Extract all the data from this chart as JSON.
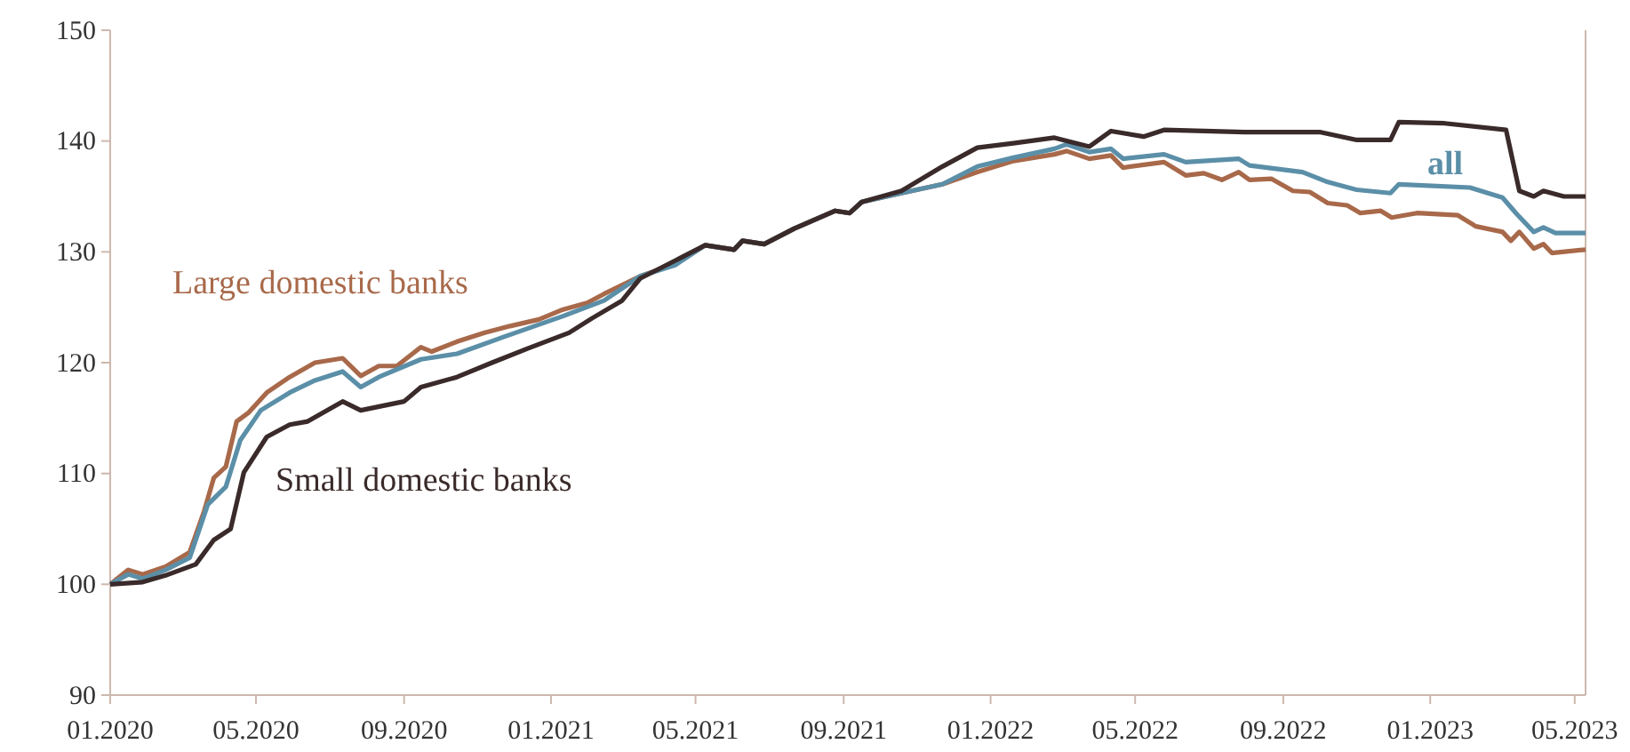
{
  "chart_data": {
    "type": "line",
    "xlim": [
      "2020-01-01",
      "2023-05-10"
    ],
    "ylim": [
      90,
      150
    ],
    "xticks": [
      {
        "value": "2020-01-01",
        "label": "01.2020"
      },
      {
        "value": "2020-05-01",
        "label": "05.2020"
      },
      {
        "value": "2020-09-01",
        "label": "09.2020"
      },
      {
        "value": "2021-01-01",
        "label": "01.2021"
      },
      {
        "value": "2021-05-01",
        "label": "05.2021"
      },
      {
        "value": "2021-09-01",
        "label": "09.2021"
      },
      {
        "value": "2022-01-01",
        "label": "01.2022"
      },
      {
        "value": "2022-05-01",
        "label": "05.2022"
      },
      {
        "value": "2022-09-01",
        "label": "09.2022"
      },
      {
        "value": "2023-01-01",
        "label": "01.2023"
      },
      {
        "value": "2023-05-01",
        "label": "05.2023"
      }
    ],
    "yticks": [
      90,
      100,
      110,
      120,
      130,
      140,
      150
    ],
    "series": [
      {
        "name": "Large domestic banks",
        "color": "#a8694a",
        "x": [
          "2020-01-01",
          "2020-01-16",
          "2020-01-28",
          "2020-02-16",
          "2020-03-07",
          "2020-03-19",
          "2020-03-27",
          "2020-04-06",
          "2020-04-15",
          "2020-04-25",
          "2020-05-10",
          "2020-05-29",
          "2020-06-19",
          "2020-07-12",
          "2020-07-27",
          "2020-08-11",
          "2020-08-26",
          "2020-09-15",
          "2020-09-24",
          "2020-10-15",
          "2020-11-07",
          "2020-11-28",
          "2020-12-22",
          "2021-01-11",
          "2021-01-31",
          "2021-02-14",
          "2021-03-16",
          "2021-04-14",
          "2021-05-09",
          "2021-06-02",
          "2021-06-09",
          "2021-06-27",
          "2021-07-22",
          "2021-08-25",
          "2021-09-06",
          "2021-09-16",
          "2021-10-19",
          "2021-11-22",
          "2021-12-21",
          "2022-01-20",
          "2022-02-23",
          "2022-03-05",
          "2022-03-24",
          "2022-04-11",
          "2022-04-21",
          "2022-05-25",
          "2022-06-12",
          "2022-06-27",
          "2022-07-12",
          "2022-07-26",
          "2022-08-04",
          "2022-08-22",
          "2022-09-09",
          "2022-09-23",
          "2022-10-08",
          "2022-10-24",
          "2022-11-04",
          "2022-11-21",
          "2022-11-30",
          "2022-12-21",
          "2023-01-24",
          "2023-02-08",
          "2023-03-02",
          "2023-03-09",
          "2023-03-16",
          "2023-03-28",
          "2023-04-05",
          "2023-04-12",
          "2023-05-10"
        ],
        "values": [
          100,
          101.3,
          100.9,
          101.6,
          102.9,
          106.6,
          109.6,
          110.6,
          114.7,
          115.5,
          117.3,
          118.7,
          120.0,
          120.4,
          118.8,
          119.7,
          119.7,
          121.4,
          121.0,
          121.9,
          122.7,
          123.3,
          123.9,
          124.8,
          125.4,
          126.2,
          127.8,
          128.9,
          130.6,
          130.2,
          131.0,
          130.7,
          132.1,
          133.7,
          133.5,
          134.5,
          135.3,
          136.1,
          137.2,
          138.2,
          138.8,
          139.1,
          138.4,
          138.7,
          137.6,
          138.1,
          136.9,
          137.1,
          136.5,
          137.2,
          136.5,
          136.6,
          135.5,
          135.4,
          134.4,
          134.2,
          133.5,
          133.7,
          133.1,
          133.5,
          133.3,
          132.3,
          131.8,
          131.0,
          131.8,
          130.3,
          130.7,
          129.9,
          130.2
        ]
      },
      {
        "name": "all",
        "color": "#5b8fa8",
        "x": [
          "2020-01-01",
          "2020-01-16",
          "2020-01-28",
          "2020-02-16",
          "2020-03-07",
          "2020-03-22",
          "2020-04-06",
          "2020-04-18",
          "2020-05-05",
          "2020-05-29",
          "2020-06-19",
          "2020-07-12",
          "2020-07-27",
          "2020-08-11",
          "2020-09-15",
          "2020-10-15",
          "2020-11-22",
          "2021-01-11",
          "2021-02-14",
          "2021-03-16",
          "2021-04-14",
          "2021-05-09",
          "2021-06-02",
          "2021-06-09",
          "2021-06-27",
          "2021-07-22",
          "2021-08-25",
          "2021-09-06",
          "2021-09-16",
          "2021-10-19",
          "2021-11-22",
          "2021-12-21",
          "2022-01-20",
          "2022-02-23",
          "2022-03-05",
          "2022-03-24",
          "2022-04-11",
          "2022-04-21",
          "2022-05-25",
          "2022-06-12",
          "2022-07-26",
          "2022-08-04",
          "2022-09-17",
          "2022-10-08",
          "2022-11-01",
          "2022-11-29",
          "2022-12-06",
          "2023-02-03",
          "2023-03-02",
          "2023-03-14",
          "2023-03-28",
          "2023-04-05",
          "2023-04-15",
          "2023-05-10"
        ],
        "values": [
          100,
          100.9,
          100.5,
          101.3,
          102.4,
          107.2,
          108.8,
          113.0,
          115.7,
          117.3,
          118.4,
          119.2,
          117.8,
          118.7,
          120.3,
          120.8,
          122.3,
          124.2,
          125.6,
          127.8,
          128.8,
          130.6,
          130.2,
          131.0,
          130.7,
          132.1,
          133.7,
          133.5,
          134.5,
          135.3,
          136.1,
          137.7,
          138.5,
          139.3,
          139.7,
          139.0,
          139.3,
          138.4,
          138.8,
          138.1,
          138.4,
          137.8,
          137.2,
          136.3,
          135.6,
          135.3,
          136.1,
          135.8,
          134.9,
          133.4,
          131.8,
          132.2,
          131.7,
          131.7
        ]
      },
      {
        "name": "Small domestic banks",
        "color": "#3a2a2a",
        "x": [
          "2020-01-01",
          "2020-01-28",
          "2020-02-16",
          "2020-03-12",
          "2020-03-27",
          "2020-04-10",
          "2020-04-21",
          "2020-05-10",
          "2020-05-29",
          "2020-06-13",
          "2020-07-12",
          "2020-07-27",
          "2020-09-01",
          "2020-09-15",
          "2020-10-15",
          "2020-11-13",
          "2020-12-13",
          "2021-01-16",
          "2021-02-04",
          "2021-03-01",
          "2021-03-16",
          "2021-04-14",
          "2021-05-09",
          "2021-06-02",
          "2021-06-09",
          "2021-06-27",
          "2021-07-22",
          "2021-08-25",
          "2021-09-06",
          "2021-09-16",
          "2021-10-19",
          "2021-11-22",
          "2021-12-21",
          "2022-01-20",
          "2022-02-23",
          "2022-03-24",
          "2022-04-11",
          "2022-05-08",
          "2022-05-25",
          "2022-07-31",
          "2022-10-02",
          "2022-11-01",
          "2022-11-29",
          "2022-12-06",
          "2023-01-13",
          "2023-03-05",
          "2023-03-16",
          "2023-03-28",
          "2023-04-05",
          "2023-04-22",
          "2023-05-10"
        ],
        "values": [
          100,
          100.2,
          100.8,
          101.8,
          104.0,
          105.0,
          110.1,
          113.3,
          114.4,
          114.7,
          116.5,
          115.7,
          116.5,
          117.8,
          118.7,
          120.0,
          121.3,
          122.7,
          124.0,
          125.6,
          127.6,
          129.2,
          130.6,
          130.2,
          131.0,
          130.7,
          132.1,
          133.7,
          133.5,
          134.5,
          135.5,
          137.7,
          139.4,
          139.8,
          140.3,
          139.5,
          140.9,
          140.4,
          141.0,
          140.8,
          140.8,
          140.1,
          140.1,
          141.7,
          141.6,
          141.0,
          135.5,
          135.0,
          135.5,
          135.0,
          135.0
        ]
      }
    ]
  }
}
